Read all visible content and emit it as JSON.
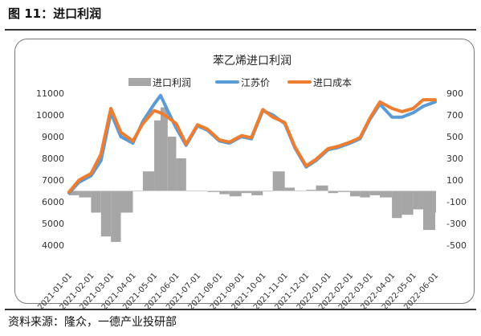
{
  "figure": {
    "label": "图 11：进口利润",
    "source": "资料来源：隆众，一德产业投研部"
  },
  "chart_data": {
    "type": "line",
    "title": "苯乙烯进口利润",
    "xlabel": "",
    "ylabel": "",
    "legend_position": "top",
    "grid": false,
    "x_ticks": [
      "2021-01-01",
      "2021-02-01",
      "2021-03-01",
      "2021-04-01",
      "2021-05-01",
      "2021-06-01",
      "2021-07-01",
      "2021-08-01",
      "2021-09-01",
      "2021-10-01",
      "2021-11-01",
      "2021-12-01",
      "2022-01-01",
      "2022-02-01",
      "2022-03-01",
      "2022-04-01",
      "2022-05-01",
      "2022-06-01"
    ],
    "y_left": {
      "ylim": [
        4000,
        11000
      ],
      "ticks": [
        4000,
        5000,
        6000,
        7000,
        8000,
        9000,
        10000,
        11000
      ]
    },
    "y_right": {
      "ylim": [
        -500,
        900
      ],
      "ticks": [
        -500,
        -300,
        -100,
        100,
        300,
        500,
        700,
        900
      ]
    },
    "x": [
      "2021-01-01",
      "2021-01-15",
      "2021-02-01",
      "2021-02-15",
      "2021-03-01",
      "2021-03-15",
      "2021-04-01",
      "2021-04-15",
      "2021-05-01",
      "2021-05-10",
      "2021-05-20",
      "2021-06-01",
      "2021-06-15",
      "2021-07-01",
      "2021-07-15",
      "2021-08-01",
      "2021-08-15",
      "2021-09-01",
      "2021-09-15",
      "2021-10-01",
      "2021-10-15",
      "2021-11-01",
      "2021-11-15",
      "2021-12-01",
      "2021-12-15",
      "2022-01-01",
      "2022-01-15",
      "2022-02-01",
      "2022-02-15",
      "2022-03-01",
      "2022-03-15",
      "2022-04-01",
      "2022-04-15",
      "2022-05-01",
      "2022-05-15",
      "2022-06-01"
    ],
    "series": [
      {
        "name": "进口利润",
        "axis": "right",
        "kind": "area",
        "color": "#a6a6a6",
        "values": [
          -40,
          -60,
          -200,
          -420,
          -470,
          -200,
          0,
          180,
          650,
          770,
          500,
          300,
          0,
          0,
          -10,
          -30,
          -50,
          -20,
          -40,
          -5,
          180,
          30,
          0,
          10,
          50,
          -20,
          -10,
          -50,
          -60,
          -40,
          -60,
          -250,
          -220,
          -170,
          -360,
          -200
        ]
      },
      {
        "name": "江苏价",
        "axis": "left",
        "kind": "line",
        "color": "#5b9bd5",
        "values": [
          6400,
          6900,
          7200,
          7900,
          10100,
          9000,
          8700,
          9700,
          10500,
          10900,
          10200,
          9400,
          8600,
          9500,
          9300,
          8800,
          8700,
          9000,
          8900,
          10200,
          10000,
          9600,
          8500,
          7600,
          7900,
          8400,
          8500,
          8700,
          8900,
          9800,
          10500,
          9900,
          9900,
          10100,
          10400,
          10600
        ]
      },
      {
        "name": "进口成本",
        "axis": "left",
        "kind": "line",
        "color": "#ed7d31",
        "values": [
          6450,
          7000,
          7300,
          8200,
          10300,
          9200,
          8800,
          9600,
          10200,
          10100,
          9900,
          9600,
          8650,
          9550,
          9350,
          8850,
          8750,
          9050,
          8950,
          10250,
          9900,
          9650,
          8550,
          7650,
          7950,
          8450,
          8550,
          8750,
          8950,
          9850,
          10600,
          10300,
          10150,
          10300,
          10700,
          10700
        ]
      }
    ]
  }
}
